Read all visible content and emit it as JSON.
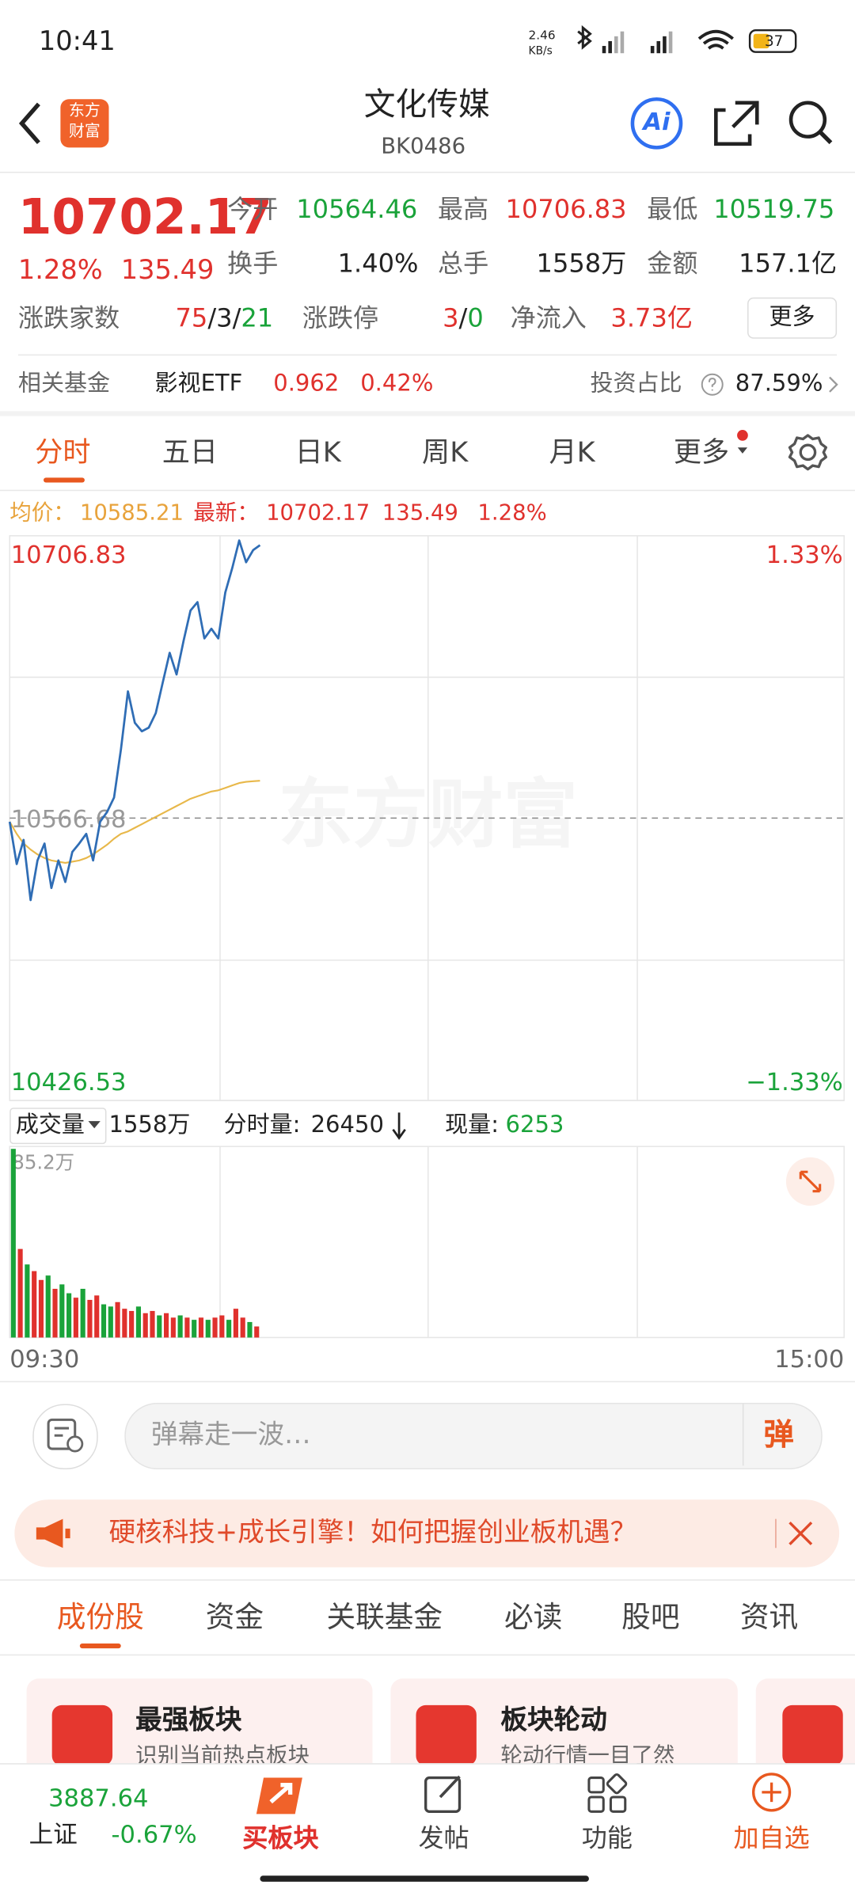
{
  "status_bar": {
    "time": "10:41",
    "net_speed": "2.46",
    "net_unit": "KB/s",
    "battery": "37"
  },
  "header": {
    "logo": [
      "东方",
      "财富"
    ],
    "title": "文化传媒",
    "code": "BK0486",
    "ai": "Ai"
  },
  "quote": {
    "price": "10702.17",
    "change_pct": "1.28%",
    "change": "135.49",
    "open": {
      "label": "今开",
      "value": "10564.46"
    },
    "high": {
      "label": "最高",
      "value": "10706.83"
    },
    "low": {
      "label": "最低",
      "value": "10519.75"
    },
    "turnover": {
      "label": "换手",
      "value": "1.40%"
    },
    "volume": {
      "label": "总手",
      "value": "1558万"
    },
    "amount": {
      "label": "金额",
      "value": "157.1亿"
    },
    "breadth": {
      "label": "涨跌家数",
      "parts": [
        "75",
        "/",
        "3",
        "/",
        "21"
      ]
    },
    "limit": {
      "label": "涨跌停",
      "parts": [
        "3",
        "/",
        "0"
      ]
    },
    "net_inflow": {
      "label": "净流入",
      "value": "3.73亿"
    },
    "more": "更多"
  },
  "fund": {
    "label": "相关基金",
    "name": "影视ETF",
    "price": "0.962",
    "pct": "0.42%",
    "ratio_label": "投资占比",
    "ratio": "87.59%"
  },
  "tabs": [
    "分时",
    "五日",
    "日K",
    "周K",
    "月K",
    "更多"
  ],
  "info": {
    "avg_label": "均价：",
    "avg": "10585.21",
    "last_label": "最新：",
    "last": "10702.17",
    "change": "135.49",
    "pct": "1.28%"
  },
  "watermark": "东方财富",
  "volume_bar": {
    "selector": "成交量",
    "total": "1558万",
    "minute_label": "分时量:",
    "minute": "26450",
    "current_label": "现量:",
    "current": "6253"
  },
  "chart_data": [
    {
      "type": "line",
      "ylim": [
        10426.53,
        10706.83
      ],
      "yticks": [
        10706.83,
        10566.68,
        10426.53
      ],
      "y2lim": [
        -1.33,
        1.33
      ],
      "y2ticks": [
        {
          "value": 1.33,
          "label": "1.33%"
        },
        {
          "value": -1.33,
          "label": "−1.33%"
        }
      ],
      "xlim": [
        0,
        240
      ],
      "series": [
        {
          "color": "#2f6db5",
          "values": [
            10564.9,
            10543.9,
            10555.9,
            10526.0,
            10545.7,
            10554.1,
            10532.0,
            10545.7,
            10535.0,
            10549.9,
            10554.1,
            10558.9,
            10545.7,
            10564.9,
            10569.7,
            10576.9,
            10600.8,
            10629.6,
            10614.0,
            10609.8,
            10611.6,
            10618.8,
            10633.8,
            10648.7,
            10638.0,
            10654.7,
            10669.7,
            10673.9,
            10655.9,
            10660.7,
            10655.9,
            10678.7,
            10690.7,
            10704.5,
            10693.7,
            10699.7,
            10702.17
          ]
        },
        {
          "color": "#e8b84a",
          "values": [
            10564.9,
            10558.9,
            10554.1,
            10551.1,
            10548.7,
            10546.9,
            10545.7,
            10545.1,
            10544.5,
            10545.1,
            10545.7,
            10546.9,
            10548.7,
            10551.1,
            10553.5,
            10556.5,
            10558.9,
            10560.1,
            10561.9,
            10563.7,
            10565.5,
            10567.3,
            10569.1,
            10570.9,
            10572.7,
            10574.5,
            10576.3,
            10577.5,
            10578.7,
            10579.9,
            10580.5,
            10581.7,
            10582.9,
            10584.1,
            10584.7,
            10585.0,
            10585.21
          ]
        }
      ]
    },
    {
      "type": "bar",
      "ylim": [
        0,
        85.2
      ],
      "yticks": [
        {
          "value": 85.2,
          "label": "85.2万"
        }
      ],
      "xlim": [
        0,
        240
      ],
      "xticks": [
        {
          "value": 0,
          "label": "09:30"
        },
        {
          "value": 240,
          "label": "15:00"
        }
      ],
      "values": [
        85.2,
        40,
        33,
        30,
        26,
        28,
        22,
        24,
        20,
        18,
        22,
        17,
        19,
        15,
        14,
        16,
        13,
        12,
        14,
        11,
        12,
        10,
        11,
        9,
        10,
        9,
        8,
        9,
        8,
        9,
        10,
        8,
        13,
        9,
        7,
        5
      ],
      "colors": [
        "#1aa33a",
        "#e0312d",
        "#1aa33a",
        "#e0312d",
        "#e0312d",
        "#1aa33a",
        "#e0312d",
        "#1aa33a",
        "#1aa33a",
        "#e0312d",
        "#1aa33a",
        "#e0312d",
        "#e0312d",
        "#1aa33a",
        "#1aa33a",
        "#e0312d",
        "#e0312d",
        "#e0312d",
        "#1aa33a",
        "#e0312d",
        "#e0312d",
        "#1aa33a",
        "#e0312d",
        "#e0312d",
        "#1aa33a",
        "#e0312d",
        "#1aa33a",
        "#e0312d",
        "#1aa33a",
        "#e0312d",
        "#e0312d",
        "#1aa33a",
        "#e0312d",
        "#e0312d",
        "#1aa33a",
        "#e0312d"
      ]
    }
  ],
  "comment": {
    "placeholder": "弹幕走一波…",
    "button": "弹"
  },
  "banner": "硬核科技+成长引擎！如何把握创业板机遇？",
  "section_tabs": [
    "成份股",
    "资金",
    "关联基金",
    "必读",
    "股吧",
    "资讯"
  ],
  "cards": [
    {
      "title": "最强板块",
      "subtitle": "识别当前热点板块"
    },
    {
      "title": "板块轮动",
      "subtitle": "轮动行情一目了然"
    }
  ],
  "nav": {
    "index_value": "3887.64",
    "index_name": "上证",
    "index_pct": "-0.67%",
    "items": [
      "买板块",
      "发帖",
      "功能",
      "加自选"
    ]
  }
}
